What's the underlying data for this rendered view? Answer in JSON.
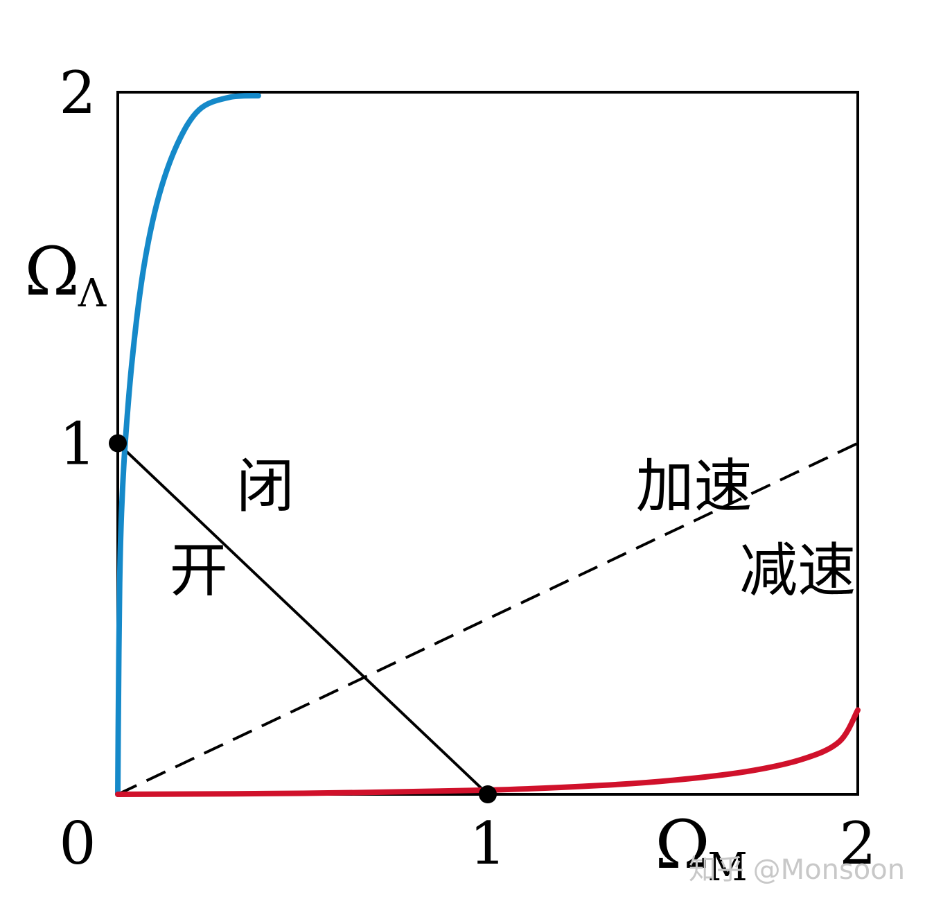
{
  "chart_data": {
    "type": "line",
    "x_range": [
      0,
      2
    ],
    "y_range": [
      0,
      2
    ],
    "xlabel": "Ω",
    "xlabel_sub": "M",
    "ylabel": "Ω",
    "ylabel_sub": "Λ",
    "x_ticks": [
      "0",
      "1",
      "2"
    ],
    "y_ticks": [
      "1",
      "2"
    ],
    "grid": false,
    "lines": [
      {
        "style": "solid",
        "color": "#000000",
        "points": [
          [
            0,
            1
          ],
          [
            1,
            0
          ]
        ]
      },
      {
        "style": "dashed",
        "color": "#000000",
        "points": [
          [
            0,
            0
          ],
          [
            2,
            1
          ]
        ]
      }
    ],
    "curves": [
      {
        "color": "#1589c9",
        "points": [
          [
            0,
            0
          ],
          [
            0.002,
            0.3
          ],
          [
            0.005,
            0.6
          ],
          [
            0.01,
            0.8
          ],
          [
            0.02,
            1.0
          ],
          [
            0.04,
            1.25
          ],
          [
            0.07,
            1.5
          ],
          [
            0.11,
            1.7
          ],
          [
            0.16,
            1.85
          ],
          [
            0.22,
            1.95
          ],
          [
            0.3,
            1.985
          ],
          [
            0.38,
            1.99
          ]
        ]
      },
      {
        "color": "#d0112b",
        "points": [
          [
            0,
            0
          ],
          [
            0.5,
            0.003
          ],
          [
            1,
            0.012
          ],
          [
            1.3,
            0.025
          ],
          [
            1.5,
            0.04
          ],
          [
            1.7,
            0.065
          ],
          [
            1.85,
            0.1
          ],
          [
            1.95,
            0.15
          ],
          [
            2,
            0.24
          ]
        ]
      }
    ],
    "points": [
      [
        0,
        1
      ],
      [
        1,
        0
      ]
    ],
    "annotations": [
      {
        "text": "闭",
        "x": 0.32,
        "y": 0.88
      },
      {
        "text": "开",
        "x": 0.14,
        "y": 0.64
      },
      {
        "text": "加速",
        "x": 1.4,
        "y": 0.88
      },
      {
        "text": "减速",
        "x": 1.68,
        "y": 0.64
      }
    ]
  },
  "watermark": "知乎 @Monsoon"
}
